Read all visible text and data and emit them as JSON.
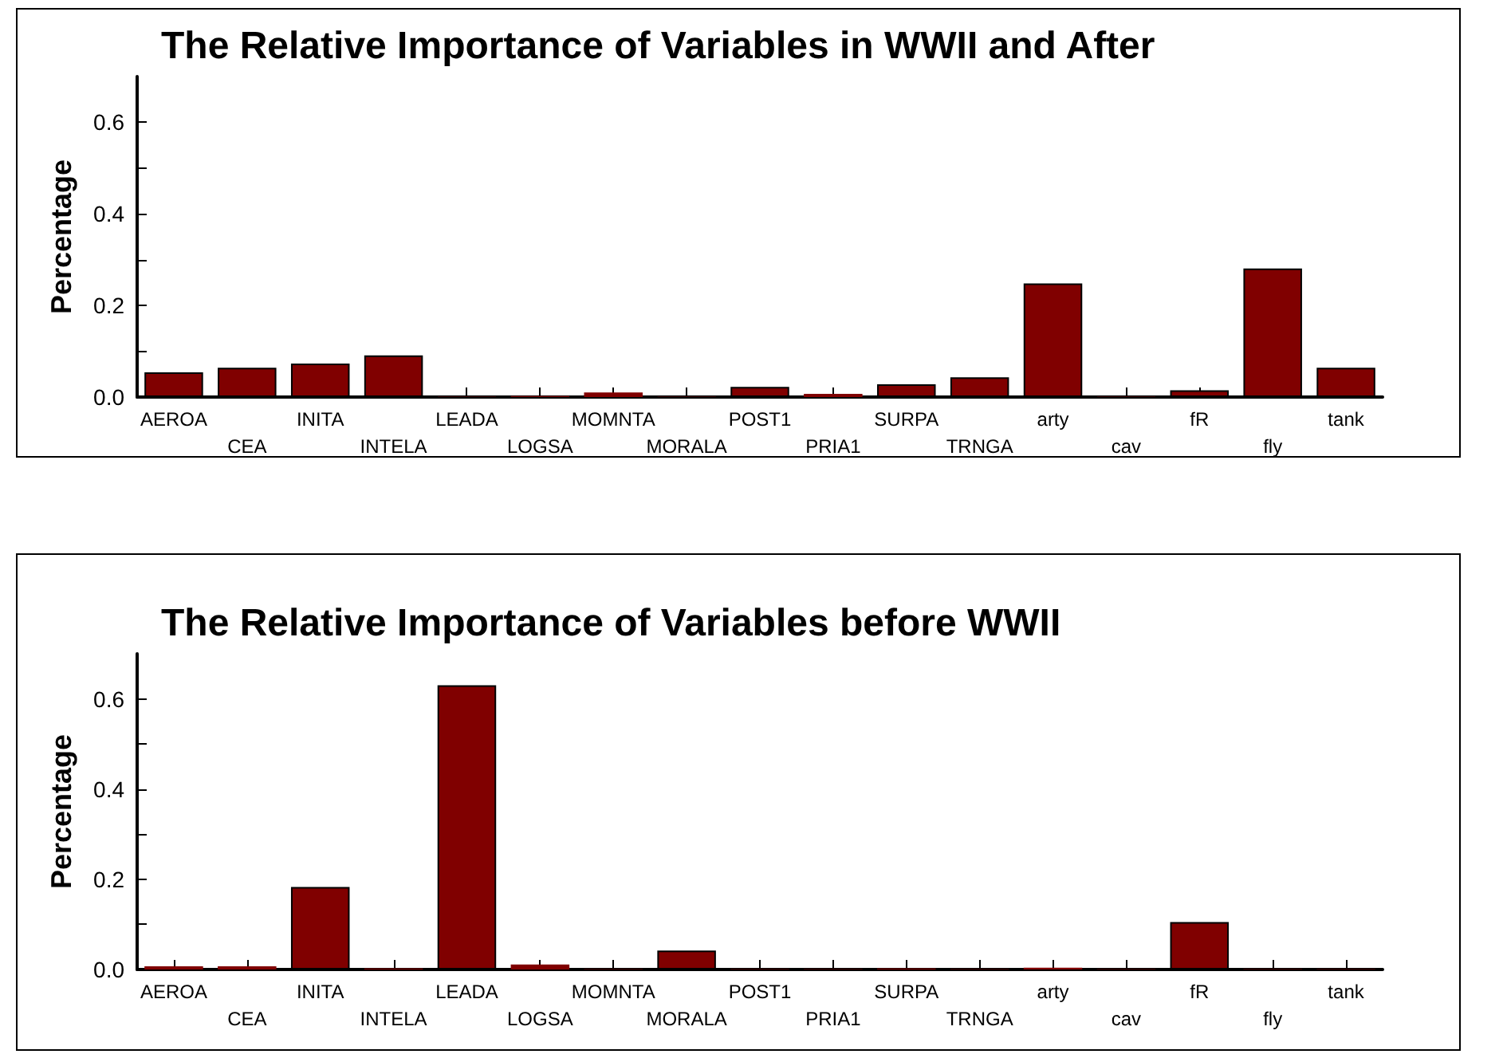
{
  "chart_data": [
    {
      "type": "bar",
      "title": "The Relative Importance of Variables in WWII and After",
      "ylabel": "Percentage",
      "categories": [
        "AEROA",
        "CEA",
        "INITA",
        "INTELA",
        "LEADA",
        "LOGSA",
        "MOMNTA",
        "MORALA",
        "POST1",
        "PRIA1",
        "SURPA",
        "TRNGA",
        "arty",
        "cav",
        "fR",
        "fly",
        "tank"
      ],
      "values": [
        0.054,
        0.064,
        0.073,
        0.091,
        0.001,
        0.002,
        0.01,
        0.001,
        0.022,
        0.007,
        0.028,
        0.043,
        0.248,
        0.001,
        0.015,
        0.281,
        0.064
      ],
      "color": "#800000",
      "ylim": [
        0,
        0.7
      ],
      "yticks": [
        {
          "value": 0,
          "label": "0.0"
        },
        {
          "value": 0.1,
          "label": null
        },
        {
          "value": 0.2,
          "label": "0.2"
        },
        {
          "value": 0.3,
          "label": null
        },
        {
          "value": 0.4,
          "label": "0.4"
        },
        {
          "value": 0.5,
          "label": null
        },
        {
          "value": 0.6,
          "label": "0.6"
        }
      ],
      "grid": false
    },
    {
      "type": "bar",
      "title": "The Relative Importance of Variables before WWII",
      "ylabel": "Percentage",
      "categories": [
        "AEROA",
        "CEA",
        "INITA",
        "INTELA",
        "LEADA",
        "LOGSA",
        "MOMNTA",
        "MORALA",
        "POST1",
        "PRIA1",
        "SURPA",
        "TRNGA",
        "arty",
        "cav",
        "fR",
        "fly",
        "tank"
      ],
      "values": [
        0.007,
        0.007,
        0.183,
        0.002,
        0.63,
        0.011,
        0.001,
        0.042,
        0.001,
        0.001,
        0.002,
        0.001,
        0.004,
        0.001,
        0.105,
        0.001,
        0.001
      ],
      "color": "#800000",
      "ylim": [
        0,
        0.7
      ],
      "yticks": [
        {
          "value": 0,
          "label": "0.0"
        },
        {
          "value": 0.1,
          "label": null
        },
        {
          "value": 0.2,
          "label": "0.2"
        },
        {
          "value": 0.3,
          "label": null
        },
        {
          "value": 0.4,
          "label": "0.4"
        },
        {
          "value": 0.5,
          "label": null
        },
        {
          "value": 0.6,
          "label": "0.6"
        }
      ],
      "grid": false
    }
  ]
}
